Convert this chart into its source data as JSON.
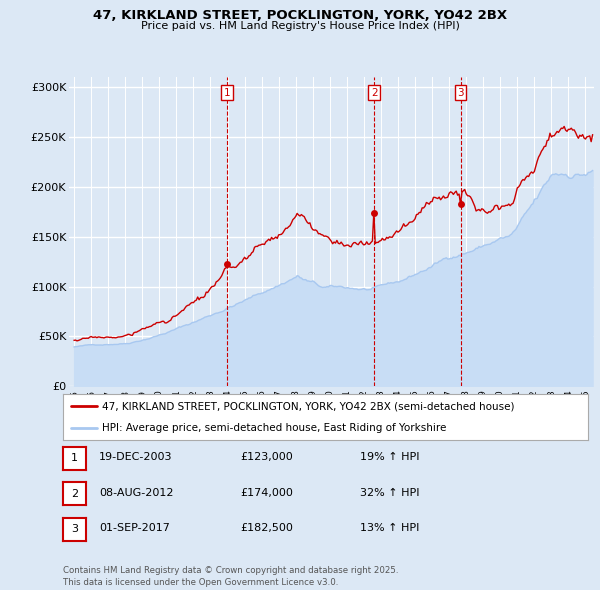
{
  "title_line1": "47, KIRKLAND STREET, POCKLINGTON, YORK, YO42 2BX",
  "title_line2": "Price paid vs. HM Land Registry's House Price Index (HPI)",
  "ylim": [
    0,
    310000
  ],
  "yticks": [
    0,
    50000,
    100000,
    150000,
    200000,
    250000,
    300000
  ],
  "ytick_labels": [
    "£0",
    "£50K",
    "£100K",
    "£150K",
    "£200K",
    "£250K",
    "£300K"
  ],
  "xlim_start": 1994.7,
  "xlim_end": 2025.5,
  "background_color": "#dce8f5",
  "plot_bg_color": "#dce8f5",
  "grid_color": "#ffffff",
  "hpi_color": "#a8c8f0",
  "hpi_fill_color": "#c8ddf5",
  "price_color": "#cc0000",
  "sale_marker_color": "#cc0000",
  "vline_color": "#cc0000",
  "transaction_label_color": "#cc0000",
  "sales": [
    {
      "date_num": 2003.97,
      "price": 123000,
      "label": "1"
    },
    {
      "date_num": 2012.6,
      "price": 174000,
      "label": "2"
    },
    {
      "date_num": 2017.67,
      "price": 182500,
      "label": "3"
    }
  ],
  "table_rows": [
    {
      "num": "1",
      "date": "19-DEC-2003",
      "price": "£123,000",
      "hpi": "19% ↑ HPI"
    },
    {
      "num": "2",
      "date": "08-AUG-2012",
      "price": "£174,000",
      "hpi": "32% ↑ HPI"
    },
    {
      "num": "3",
      "date": "01-SEP-2017",
      "price": "£182,500",
      "hpi": "13% ↑ HPI"
    }
  ],
  "legend_line1": "47, KIRKLAND STREET, POCKLINGTON, YORK, YO42 2BX (semi-detached house)",
  "legend_line2": "HPI: Average price, semi-detached house, East Riding of Yorkshire",
  "footer": "Contains HM Land Registry data © Crown copyright and database right 2025.\nThis data is licensed under the Open Government Licence v3.0."
}
